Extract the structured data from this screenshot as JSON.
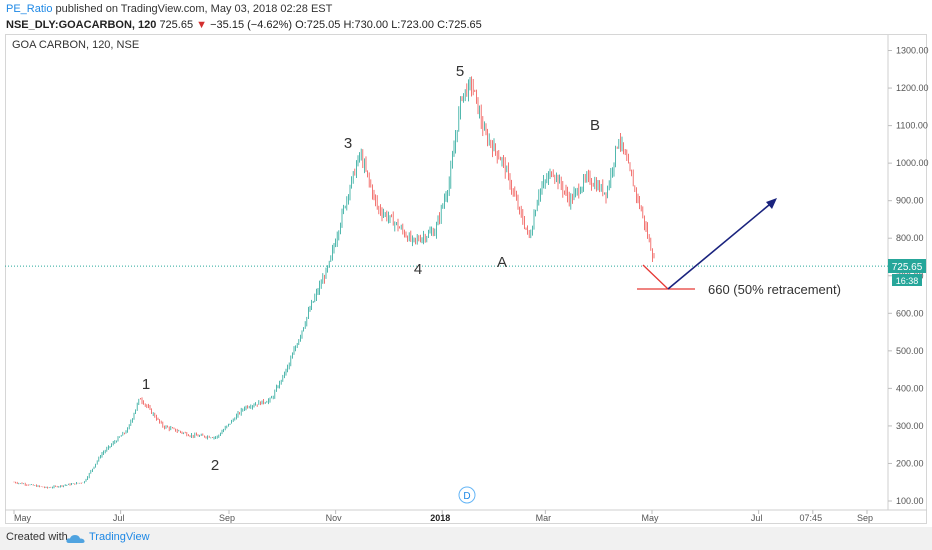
{
  "header": {
    "user": "PE_Ratio",
    "published": "published on TradingView.com, May 03, 2018 02:28 EST",
    "symbol": "NSE_DLY:GOACARBON, 120",
    "last": "725.65",
    "change": "−35.15 (−4.62%)",
    "ohlc": {
      "O": "725.05",
      "H": "730.00",
      "L": "723.00",
      "C": "725.65"
    },
    "down_arrow": "▼"
  },
  "chart_data": {
    "type": "candlestick",
    "title": "GOA CARBON, 120, NSE",
    "price_axis": {
      "min": 100,
      "max": 1300,
      "ticks": [
        "1300.00",
        "1200.00",
        "1100.00",
        "1000.00",
        "900.00",
        "800.00",
        "700.00",
        "600.00",
        "500.00",
        "400.00",
        "300.00",
        "200.00",
        "100.00"
      ]
    },
    "time_axis": {
      "ticks": [
        "May",
        "Jul",
        "Sep",
        "Nov",
        "2018",
        "Mar",
        "May",
        "Jul",
        "07:45",
        "Sep"
      ]
    },
    "last_price_label": "725.65",
    "countdown_label": "16:38",
    "colors": {
      "up": "#26a69a",
      "down": "#ef5350",
      "last_price": "#26a69a",
      "annotation": "#e53935",
      "arrow": "#1a237e"
    },
    "wave_labels": [
      "1",
      "2",
      "3",
      "4",
      "5",
      "A",
      "B"
    ],
    "annotation_text": "660 (50% retracement)",
    "target_level": 660,
    "price_path": [
      {
        "t": "2017-05-01",
        "price": 150
      },
      {
        "t": "2017-05-20",
        "price": 135
      },
      {
        "t": "2017-06-10",
        "price": 150
      },
      {
        "t": "2017-06-20",
        "price": 225
      },
      {
        "t": "2017-07-05",
        "price": 290
      },
      {
        "t": "2017-07-12",
        "price": 375
      },
      {
        "t": "2017-07-25",
        "price": 300
      },
      {
        "t": "2017-08-10",
        "price": 275
      },
      {
        "t": "2017-08-25",
        "price": 270
      },
      {
        "t": "2017-09-10",
        "price": 350
      },
      {
        "t": "2017-09-25",
        "price": 370
      },
      {
        "t": "2017-10-05",
        "price": 460
      },
      {
        "t": "2017-10-18",
        "price": 620
      },
      {
        "t": "2017-10-28",
        "price": 725
      },
      {
        "t": "2017-11-08",
        "price": 920
      },
      {
        "t": "2017-11-15",
        "price": 1025
      },
      {
        "t": "2017-11-25",
        "price": 880
      },
      {
        "t": "2017-12-05",
        "price": 840
      },
      {
        "t": "2017-12-15",
        "price": 790
      },
      {
        "t": "2017-12-28",
        "price": 820
      },
      {
        "t": "2018-01-05",
        "price": 950
      },
      {
        "t": "2018-01-12",
        "price": 1180
      },
      {
        "t": "2018-01-18",
        "price": 1210
      },
      {
        "t": "2018-01-25",
        "price": 1080
      },
      {
        "t": "2018-02-05",
        "price": 1000
      },
      {
        "t": "2018-02-15",
        "price": 860
      },
      {
        "t": "2018-02-20",
        "price": 800
      },
      {
        "t": "2018-02-25",
        "price": 920
      },
      {
        "t": "2018-03-05",
        "price": 980
      },
      {
        "t": "2018-03-15",
        "price": 900
      },
      {
        "t": "2018-03-25",
        "price": 960
      },
      {
        "t": "2018-04-05",
        "price": 920
      },
      {
        "t": "2018-04-12",
        "price": 1070
      },
      {
        "t": "2018-04-18",
        "price": 980
      },
      {
        "t": "2018-04-25",
        "price": 870
      },
      {
        "t": "2018-05-03",
        "price": 725.65
      }
    ]
  },
  "footer": {
    "created": "Created with",
    "brand": "TradingView"
  },
  "go_to_date": "D"
}
